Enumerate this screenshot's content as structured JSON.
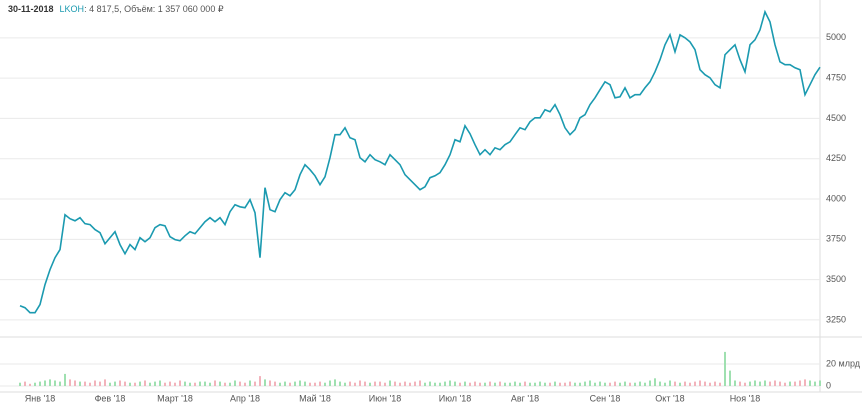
{
  "chart_data": [
    {
      "type": "line",
      "title": "30-11-2018",
      "ticker": "LKOH",
      "subtitle": ": 4 817,5, Объём: 1 357 060 000 ₽",
      "color": "#1b9ab0",
      "grid": true,
      "categories": [
        null,
        null,
        null,
        null,
        "Янв '18",
        null,
        null,
        null,
        null,
        null,
        null,
        null,
        null,
        null,
        null,
        null,
        null,
        null,
        "Фев '18",
        null,
        null,
        null,
        null,
        null,
        null,
        null,
        null,
        null,
        null,
        null,
        null,
        "Март '18",
        null,
        null,
        null,
        null,
        null,
        null,
        null,
        null,
        null,
        null,
        null,
        null,
        null,
        "Апр '18",
        null,
        null,
        null,
        null,
        null,
        null,
        null,
        null,
        null,
        null,
        null,
        null,
        null,
        "Май '18",
        null,
        null,
        null,
        null,
        null,
        null,
        null,
        null,
        null,
        null,
        null,
        null,
        null,
        "Июн '18",
        null,
        null,
        null,
        null,
        null,
        null,
        null,
        null,
        null,
        null,
        null,
        null,
        null,
        "Июл '18",
        null,
        null,
        null,
        null,
        null,
        null,
        null,
        null,
        null,
        null,
        null,
        null,
        null,
        "Авг '18",
        null,
        null,
        null,
        null,
        null,
        null,
        null,
        null,
        null,
        null,
        null,
        null,
        null,
        null,
        null,
        "Сен '18",
        null,
        null,
        null,
        null,
        null,
        null,
        null,
        null,
        null,
        null,
        null,
        null,
        "Окт '18",
        null,
        null,
        null,
        null,
        null,
        null,
        null,
        null,
        null,
        null,
        null,
        null,
        null,
        null,
        "Ноя '18",
        null,
        null,
        null,
        null,
        null,
        null,
        null,
        null,
        null,
        null,
        null,
        null,
        null,
        null,
        null
      ],
      "values": [
        3338,
        3326,
        3295,
        3295,
        3345,
        3469,
        3562,
        3636,
        3686,
        3903,
        3878,
        3865,
        3884,
        3847,
        3841,
        3810,
        3791,
        3723,
        3760,
        3797,
        3717,
        3661,
        3717,
        3686,
        3760,
        3735,
        3760,
        3822,
        3841,
        3834,
        3766,
        3748,
        3741,
        3772,
        3797,
        3785,
        3822,
        3859,
        3884,
        3859,
        3884,
        3841,
        3921,
        3965,
        3952,
        3946,
        3996,
        3915,
        3636,
        4070,
        3934,
        3921,
        3996,
        4039,
        4020,
        4058,
        4151,
        4213,
        4182,
        4144,
        4089,
        4138,
        4256,
        4399,
        4399,
        4442,
        4380,
        4368,
        4256,
        4231,
        4275,
        4244,
        4231,
        4213,
        4275,
        4244,
        4213,
        4151,
        4120,
        4089,
        4058,
        4076,
        4132,
        4144,
        4163,
        4213,
        4275,
        4368,
        4355,
        4454,
        4405,
        4337,
        4275,
        4306,
        4275,
        4318,
        4306,
        4337,
        4355,
        4399,
        4442,
        4430,
        4479,
        4504,
        4504,
        4554,
        4541,
        4585,
        4523,
        4442,
        4399,
        4430,
        4504,
        4523,
        4585,
        4628,
        4678,
        4727,
        4709,
        4628,
        4634,
        4690,
        4628,
        4647,
        4647,
        4690,
        4727,
        4789,
        4864,
        4957,
        5019,
        4913,
        5019,
        5000,
        4975,
        4926,
        4802,
        4771,
        4752,
        4709,
        4690,
        4895,
        4926,
        4957,
        4864,
        4789,
        4957,
        4988,
        5050,
        5161,
        5099,
        4957,
        4851,
        4833,
        4833,
        4814,
        4802,
        4647,
        4709,
        4771,
        4817.5
      ],
      "ylim": [
        3175,
        5185
      ],
      "yticks": [
        3250,
        3500,
        3750,
        4000,
        4250,
        4500,
        4750,
        5000
      ]
    },
    {
      "type": "bar",
      "up_color": "#9fe0b0",
      "down_color": "#f2b3bb",
      "values": [
        3,
        4,
        2,
        3,
        4,
        5,
        6,
        5,
        4,
        11,
        6,
        5,
        4,
        4,
        3,
        5,
        4,
        6,
        3,
        4,
        5,
        4,
        3,
        3,
        4,
        5,
        3,
        4,
        5,
        3,
        4,
        3,
        5,
        4,
        3,
        3,
        4,
        4,
        3,
        5,
        4,
        3,
        3,
        5,
        4,
        3,
        5,
        4,
        9,
        6,
        5,
        4,
        3,
        4,
        3,
        4,
        5,
        4,
        3,
        3,
        4,
        3,
        5,
        6,
        4,
        3,
        4,
        3,
        5,
        4,
        3,
        4,
        4,
        3,
        5,
        4,
        3,
        4,
        3,
        4,
        5,
        3,
        4,
        3,
        3,
        4,
        5,
        4,
        3,
        4,
        3,
        4,
        3,
        3,
        4,
        3,
        4,
        3,
        3,
        4,
        3,
        4,
        3,
        3,
        4,
        3,
        3,
        4,
        3,
        3,
        4,
        3,
        3,
        4,
        5,
        3,
        4,
        3,
        3,
        4,
        3,
        4,
        3,
        3,
        4,
        3,
        5,
        7,
        4,
        3,
        5,
        4,
        3,
        4,
        3,
        4,
        5,
        4,
        3,
        4,
        3,
        31,
        14,
        5,
        4,
        3,
        4,
        5,
        4,
        5,
        4,
        5,
        4,
        3,
        4,
        4,
        5,
        6,
        5,
        4,
        5
      ],
      "ylim": [
        0,
        40
      ],
      "yticks": [
        0,
        {
          "value": 20,
          "label": "20 млрд"
        }
      ]
    }
  ]
}
